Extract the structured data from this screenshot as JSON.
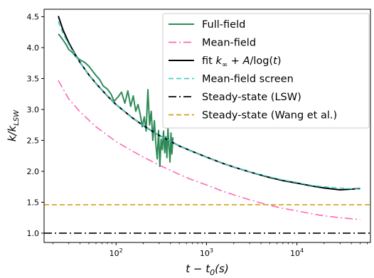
{
  "chart_data": {
    "type": "line",
    "xlabel": "t − t₀(s)",
    "ylabel": "k/k_LSW",
    "x_scale": "log",
    "xlim": [
      16,
      65000
    ],
    "ylim": [
      0.85,
      4.62
    ],
    "x_ticks": [
      {
        "value": 100,
        "base": "10",
        "exp": "2"
      },
      {
        "value": 1000,
        "base": "10",
        "exp": "3"
      },
      {
        "value": 10000,
        "base": "10",
        "exp": "4"
      }
    ],
    "y_ticks": [
      {
        "value": 1.0,
        "label": "1.0"
      },
      {
        "value": 1.5,
        "label": "1.5"
      },
      {
        "value": 2.0,
        "label": "2.0"
      },
      {
        "value": 2.5,
        "label": "2.5"
      },
      {
        "value": 3.0,
        "label": "3.0"
      },
      {
        "value": 3.5,
        "label": "3.5"
      },
      {
        "value": 4.0,
        "label": "4.0"
      },
      {
        "value": 4.5,
        "label": "4.5"
      }
    ],
    "grid": false,
    "legend_position": "upper right",
    "series": [
      {
        "name": "Full-field",
        "color": "#2e8b57",
        "style": "solid",
        "x": [
          23,
          24,
          26,
          28,
          30,
          33,
          36,
          40,
          45,
          50,
          55,
          60,
          66,
          72,
          80,
          88,
          95,
          105,
          115,
          125,
          135,
          145,
          155,
          165,
          175,
          185,
          195,
          205,
          215,
          225,
          235,
          245,
          255,
          265,
          275,
          285,
          295,
          305,
          315,
          325,
          335,
          345,
          355,
          365,
          375,
          385,
          395,
          405,
          415,
          425
        ],
        "y": [
          4.22,
          4.19,
          4.12,
          4.05,
          3.97,
          3.92,
          3.85,
          3.8,
          3.76,
          3.7,
          3.62,
          3.55,
          3.48,
          3.38,
          3.33,
          3.25,
          3.13,
          3.2,
          3.28,
          3.1,
          3.3,
          3.05,
          3.22,
          2.97,
          3.08,
          2.92,
          2.72,
          2.88,
          2.65,
          3.32,
          2.75,
          2.97,
          2.5,
          2.82,
          2.45,
          2.2,
          2.66,
          2.08,
          2.52,
          2.35,
          2.65,
          2.3,
          2.56,
          2.22,
          2.7,
          2.38,
          2.15,
          2.62,
          2.28,
          2.55
        ]
      },
      {
        "name": "Mean-field",
        "color": "#ff69b4",
        "style": "dashdot",
        "x": [
          23,
          30,
          40,
          60,
          100,
          150,
          200,
          300,
          500,
          700,
          1000,
          1500,
          2000,
          3000,
          5000,
          7000,
          10000,
          15000,
          20000,
          30000,
          50000
        ],
        "y": [
          3.47,
          3.17,
          2.96,
          2.72,
          2.48,
          2.33,
          2.23,
          2.1,
          1.95,
          1.86,
          1.78,
          1.68,
          1.62,
          1.54,
          1.45,
          1.4,
          1.36,
          1.31,
          1.28,
          1.25,
          1.22
        ]
      },
      {
        "name": "fit k∞ + A/log(t)",
        "color": "#000000",
        "style": "solid",
        "x": [
          23,
          26,
          30,
          35,
          40,
          50,
          60,
          80,
          100,
          150,
          200,
          300,
          500,
          700,
          1000,
          1500,
          2000,
          3000,
          5000,
          7000,
          10000,
          15000,
          20000,
          30000,
          50000
        ],
        "y": [
          4.51,
          4.28,
          4.08,
          3.9,
          3.76,
          3.56,
          3.42,
          3.22,
          3.08,
          2.87,
          2.74,
          2.58,
          2.41,
          2.32,
          2.23,
          2.13,
          2.07,
          1.99,
          1.9,
          1.85,
          1.81,
          1.76,
          1.73,
          1.7,
          1.72
        ]
      },
      {
        "name": "Mean-field screen",
        "color": "#48d1cc",
        "style": "dashed",
        "x": [
          23,
          26,
          30,
          35,
          40,
          50,
          60,
          80,
          100,
          150,
          200,
          300,
          500,
          700,
          1000,
          1500,
          2000,
          3000,
          5000,
          7000,
          10000,
          15000,
          20000,
          30000,
          50000
        ],
        "y": [
          4.42,
          4.22,
          4.05,
          3.89,
          3.76,
          3.56,
          3.42,
          3.22,
          3.08,
          2.87,
          2.74,
          2.58,
          2.41,
          2.32,
          2.23,
          2.13,
          2.07,
          1.99,
          1.91,
          1.86,
          1.82,
          1.77,
          1.75,
          1.73,
          1.71
        ]
      },
      {
        "name": "Steady-state (LSW)",
        "color": "#000000",
        "style": "dashdot",
        "x": [
          16,
          65000
        ],
        "y": [
          1.0,
          1.0
        ]
      },
      {
        "name": "Steady-state (Wang et al.)",
        "color": "#d4a017",
        "style": "dashed",
        "x": [
          16,
          65000
        ],
        "y": [
          1.46,
          1.46
        ]
      }
    ]
  }
}
